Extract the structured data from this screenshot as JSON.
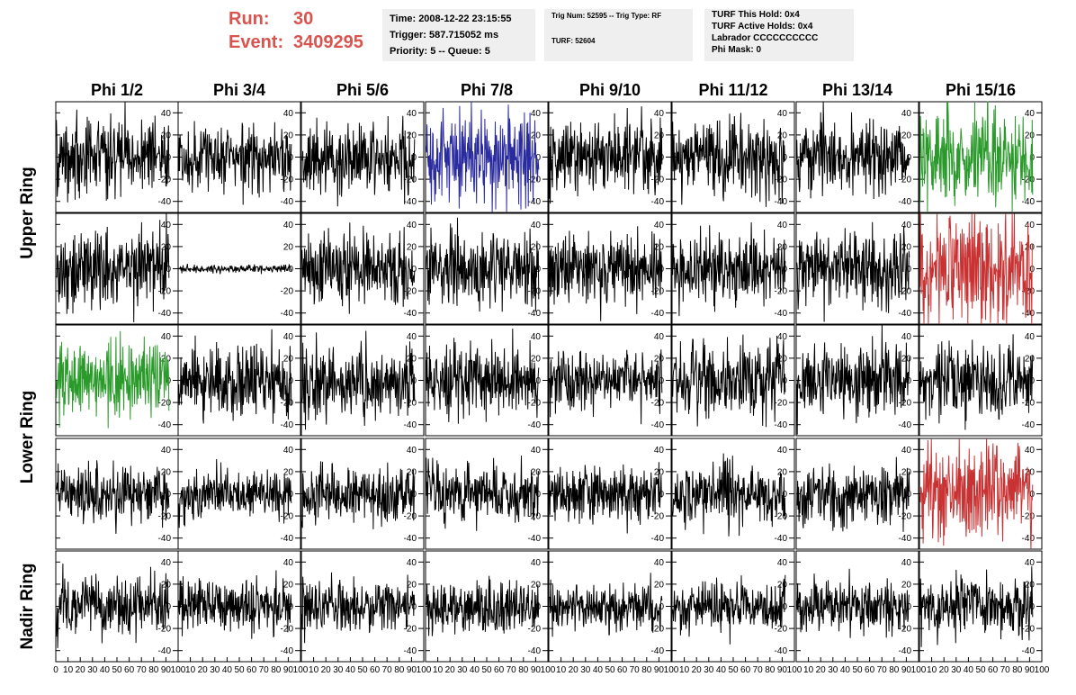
{
  "header": {
    "run_label": "Run:",
    "run_value": "30",
    "event_label": "Event:",
    "event_value": "3409295"
  },
  "info_box_1": {
    "time": "Time: 2008-12-22 23:15:55",
    "trigger": "Trigger: 587.715052 ms",
    "priority": "Priority: 5 -- Queue: 5"
  },
  "info_box_2": {
    "trig": "Trig Num: 52595 -- Trig Type: RF",
    "turf": "TURF: 52604"
  },
  "info_box_3": {
    "hold": "TURF This Hold: 0x4",
    "active": "TURF Active Holds: 0x4",
    "labrador": "Labrador CCCCCCCCCC",
    "phimask": "Phi Mask: 0"
  },
  "colors": {
    "default": "#000000",
    "blue": "#2b2ba0",
    "green": "#2a9a2a",
    "red": "#c83232",
    "header_red": "#d9534f",
    "box_bg": "#efefef"
  },
  "chart_data": {
    "type": "line",
    "columns": [
      "Phi 1/2",
      "Phi 3/4",
      "Phi 5/6",
      "Phi 7/8",
      "Phi 9/10",
      "Phi 11/12",
      "Phi 13/14",
      "Phi 15/16"
    ],
    "rows": [
      "Upper Ring",
      "Upper Ring",
      "Lower Ring",
      "Lower Ring",
      "Nadir Ring"
    ],
    "ring_labels": [
      "Upper Ring",
      "Lower Ring",
      "Nadir Ring"
    ],
    "xlim": [
      0,
      100
    ],
    "ylim": [
      -50,
      50
    ],
    "y_ticks": [
      -40,
      -20,
      0,
      20,
      40
    ],
    "x_ticks": [
      0,
      10,
      20,
      30,
      40,
      50,
      60,
      70,
      80,
      90,
      100
    ],
    "samples": 260,
    "trace_colors": [
      [
        "default",
        "default",
        "default",
        "blue",
        "default",
        "default",
        "default",
        "green"
      ],
      [
        "default",
        "default",
        "default",
        "default",
        "default",
        "default",
        "default",
        "red"
      ],
      [
        "green",
        "default",
        "default",
        "default",
        "default",
        "default",
        "default",
        "default"
      ],
      [
        "default",
        "default",
        "default",
        "default",
        "default",
        "default",
        "default",
        "red"
      ],
      [
        "default",
        "default",
        "default",
        "default",
        "default",
        "default",
        "default",
        "default"
      ]
    ],
    "trace_amplitude": [
      [
        18,
        15,
        17,
        20,
        17,
        17,
        18,
        22
      ],
      [
        18,
        2,
        17,
        17,
        16,
        16,
        17,
        24
      ],
      [
        18,
        17,
        16,
        16,
        14,
        17,
        17,
        16
      ],
      [
        14,
        12,
        14,
        14,
        13,
        14,
        14,
        22
      ],
      [
        14,
        12,
        12,
        12,
        11,
        12,
        12,
        14
      ]
    ]
  }
}
